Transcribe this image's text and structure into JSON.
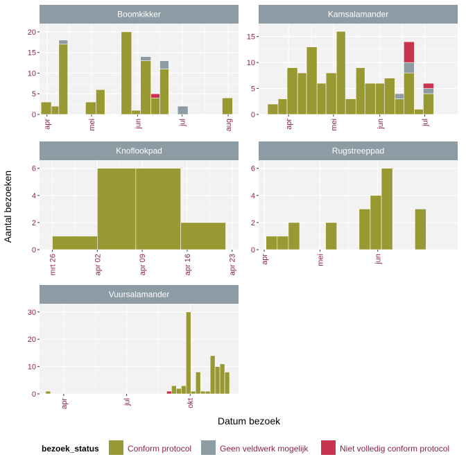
{
  "axis_titles": {
    "x": "Datum bezoek",
    "y": "Aantal bezoeken"
  },
  "legend": {
    "title": "bezoek_status",
    "items": [
      {
        "key": "conform",
        "label": "Conform protocol",
        "color": "#999933"
      },
      {
        "key": "geen",
        "label": "Geen veldwerk mogelijk",
        "color": "#8d9ba5"
      },
      {
        "key": "niet",
        "label": "Niet volledig conform protocol",
        "color": "#c8334f"
      }
    ]
  },
  "chart_data": [
    {
      "type": "bar",
      "facet": "Boomkikker",
      "stack_order": [
        "conform",
        "geen",
        "niet"
      ],
      "ylim": [
        0,
        22
      ],
      "yticks": [
        0,
        5,
        10,
        15,
        20
      ],
      "x_domain": [
        "2023-03-27",
        "2023-08-08"
      ],
      "xticks": [
        {
          "date": "2023-04-01",
          "label": "apr"
        },
        {
          "date": "2023-05-01",
          "label": "mei"
        },
        {
          "date": "2023-06-01",
          "label": "jun"
        },
        {
          "date": "2023-07-01",
          "label": "jul"
        },
        {
          "date": "2023-08-01",
          "label": "aug"
        }
      ],
      "bins": [
        {
          "start": "2023-03-28",
          "end": "2023-04-04",
          "conform": 3,
          "geen": 0,
          "niet": 0
        },
        {
          "start": "2023-04-04",
          "end": "2023-04-09",
          "conform": 2,
          "geen": 0,
          "niet": 0
        },
        {
          "start": "2023-04-09",
          "end": "2023-04-15",
          "conform": 17,
          "geen": 1,
          "niet": 0
        },
        {
          "start": "2023-04-27",
          "end": "2023-05-04",
          "conform": 3,
          "geen": 0,
          "niet": 0
        },
        {
          "start": "2023-05-04",
          "end": "2023-05-10",
          "conform": 6,
          "geen": 0,
          "niet": 0
        },
        {
          "start": "2023-05-21",
          "end": "2023-05-28",
          "conform": 20,
          "geen": 0,
          "niet": 0
        },
        {
          "start": "2023-05-28",
          "end": "2023-06-03",
          "conform": 1,
          "geen": 0,
          "niet": 0
        },
        {
          "start": "2023-06-03",
          "end": "2023-06-10",
          "conform": 13,
          "geen": 1,
          "niet": 0
        },
        {
          "start": "2023-06-10",
          "end": "2023-06-16",
          "conform": 4,
          "geen": 0,
          "niet": 1
        },
        {
          "start": "2023-06-16",
          "end": "2023-06-22",
          "conform": 11,
          "geen": 2,
          "niet": 0
        },
        {
          "start": "2023-06-28",
          "end": "2023-07-05",
          "conform": 0,
          "geen": 2,
          "niet": 0
        },
        {
          "start": "2023-07-28",
          "end": "2023-08-04",
          "conform": 4,
          "geen": 0,
          "niet": 0
        }
      ]
    },
    {
      "type": "bar",
      "facet": "Kamsalamander",
      "stack_order": [
        "conform",
        "geen",
        "niet"
      ],
      "ylim": [
        0,
        17.5
      ],
      "yticks": [
        0,
        5,
        10,
        15
      ],
      "x_domain": [
        "2023-03-12",
        "2023-07-23"
      ],
      "xticks": [
        {
          "date": "2023-04-01",
          "label": "apr"
        },
        {
          "date": "2023-05-01",
          "label": "mei"
        },
        {
          "date": "2023-06-01",
          "label": "jun"
        },
        {
          "date": "2023-07-01",
          "label": "jul"
        }
      ],
      "bins": [
        {
          "start": "2023-03-18",
          "end": "2023-03-25",
          "conform": 2,
          "geen": 0,
          "niet": 0
        },
        {
          "start": "2023-03-25",
          "end": "2023-03-31",
          "conform": 3,
          "geen": 0,
          "niet": 0
        },
        {
          "start": "2023-03-31",
          "end": "2023-04-07",
          "conform": 9,
          "geen": 0,
          "niet": 0
        },
        {
          "start": "2023-04-07",
          "end": "2023-04-13",
          "conform": 8,
          "geen": 0,
          "niet": 0
        },
        {
          "start": "2023-04-13",
          "end": "2023-04-20",
          "conform": 13,
          "geen": 0,
          "niet": 0
        },
        {
          "start": "2023-04-20",
          "end": "2023-04-26",
          "conform": 6,
          "geen": 0,
          "niet": 0
        },
        {
          "start": "2023-04-26",
          "end": "2023-05-03",
          "conform": 8,
          "geen": 0,
          "niet": 0
        },
        {
          "start": "2023-05-03",
          "end": "2023-05-09",
          "conform": 16,
          "geen": 0,
          "niet": 0
        },
        {
          "start": "2023-05-09",
          "end": "2023-05-16",
          "conform": 3,
          "geen": 0,
          "niet": 0
        },
        {
          "start": "2023-05-16",
          "end": "2023-05-22",
          "conform": 9,
          "geen": 0,
          "niet": 0
        },
        {
          "start": "2023-05-22",
          "end": "2023-05-29",
          "conform": 6,
          "geen": 0,
          "niet": 0
        },
        {
          "start": "2023-05-29",
          "end": "2023-06-04",
          "conform": 6,
          "geen": 0,
          "niet": 0
        },
        {
          "start": "2023-06-04",
          "end": "2023-06-11",
          "conform": 7,
          "geen": 0,
          "niet": 0
        },
        {
          "start": "2023-06-11",
          "end": "2023-06-17",
          "conform": 3,
          "geen": 1,
          "niet": 0
        },
        {
          "start": "2023-06-17",
          "end": "2023-06-24",
          "conform": 8,
          "geen": 2,
          "niet": 4
        },
        {
          "start": "2023-06-24",
          "end": "2023-06-30",
          "conform": 1,
          "geen": 0,
          "niet": 0
        },
        {
          "start": "2023-06-30",
          "end": "2023-07-07",
          "conform": 4,
          "geen": 1,
          "niet": 1
        }
      ]
    },
    {
      "type": "bar",
      "facet": "Knoflookpad",
      "stack_order": [
        "conform",
        "geen",
        "niet"
      ],
      "ylim": [
        0,
        6.6
      ],
      "yticks": [
        0,
        2,
        4,
        6
      ],
      "x_domain": [
        "2023-03-24",
        "2023-04-24"
      ],
      "xticks": [
        {
          "date": "2023-03-26",
          "label": "mrt 26"
        },
        {
          "date": "2023-04-02",
          "label": "apr 02"
        },
        {
          "date": "2023-04-09",
          "label": "apr 09"
        },
        {
          "date": "2023-04-16",
          "label": "apr 16"
        },
        {
          "date": "2023-04-23",
          "label": "apr 23"
        }
      ],
      "bins": [
        {
          "start": "2023-03-26",
          "end": "2023-04-02",
          "conform": 1,
          "geen": 0,
          "niet": 0
        },
        {
          "start": "2023-04-02",
          "end": "2023-04-08",
          "conform": 6,
          "geen": 0,
          "niet": 0
        },
        {
          "start": "2023-04-08",
          "end": "2023-04-15",
          "conform": 6,
          "geen": 0,
          "niet": 0
        },
        {
          "start": "2023-04-15",
          "end": "2023-04-22",
          "conform": 2,
          "geen": 0,
          "niet": 0
        }
      ]
    },
    {
      "type": "bar",
      "facet": "Rugstreeppad",
      "stack_order": [
        "conform",
        "geen",
        "niet"
      ],
      "ylim": [
        0,
        6.6
      ],
      "yticks": [
        0,
        2,
        4,
        6
      ],
      "x_domain": [
        "2023-03-29",
        "2023-07-14"
      ],
      "xticks": [
        {
          "date": "2023-04-01",
          "label": "apr"
        },
        {
          "date": "2023-05-01",
          "label": "mei"
        },
        {
          "date": "2023-06-01",
          "label": "jun"
        }
      ],
      "bins": [
        {
          "start": "2023-04-02",
          "end": "2023-04-08",
          "conform": 1,
          "geen": 0,
          "niet": 0
        },
        {
          "start": "2023-04-08",
          "end": "2023-04-14",
          "conform": 1,
          "geen": 0,
          "niet": 0
        },
        {
          "start": "2023-04-14",
          "end": "2023-04-20",
          "conform": 2,
          "geen": 0,
          "niet": 0
        },
        {
          "start": "2023-05-04",
          "end": "2023-05-10",
          "conform": 2,
          "geen": 0,
          "niet": 0
        },
        {
          "start": "2023-05-22",
          "end": "2023-05-28",
          "conform": 3,
          "geen": 0,
          "niet": 0
        },
        {
          "start": "2023-05-28",
          "end": "2023-06-03",
          "conform": 4,
          "geen": 0,
          "niet": 0
        },
        {
          "start": "2023-06-03",
          "end": "2023-06-09",
          "conform": 6,
          "geen": 0,
          "niet": 0
        },
        {
          "start": "2023-06-21",
          "end": "2023-06-27",
          "conform": 3,
          "geen": 0,
          "niet": 0
        }
      ]
    },
    {
      "type": "bar",
      "facet": "Vuursalamander",
      "stack_order": [
        "conform",
        "geen",
        "niet"
      ],
      "ylim": [
        0,
        33
      ],
      "yticks": [
        0,
        10,
        20,
        30
      ],
      "x_domain": [
        "2023-02-25",
        "2023-12-10"
      ],
      "xticks": [
        {
          "date": "2023-04-01",
          "label": "apr"
        },
        {
          "date": "2023-07-01",
          "label": "jul"
        },
        {
          "date": "2023-10-01",
          "label": "okt"
        }
      ],
      "bins": [
        {
          "start": "2023-03-06",
          "end": "2023-03-13",
          "conform": 1,
          "geen": 0,
          "niet": 0
        },
        {
          "start": "2023-08-28",
          "end": "2023-09-04",
          "conform": 0,
          "geen": 0,
          "niet": 1
        },
        {
          "start": "2023-09-04",
          "end": "2023-09-11",
          "conform": 3,
          "geen": 0,
          "niet": 0
        },
        {
          "start": "2023-09-11",
          "end": "2023-09-18",
          "conform": 2,
          "geen": 0,
          "niet": 0
        },
        {
          "start": "2023-09-18",
          "end": "2023-09-25",
          "conform": 3,
          "geen": 0,
          "niet": 0
        },
        {
          "start": "2023-09-25",
          "end": "2023-10-02",
          "conform": 30,
          "geen": 0,
          "niet": 0
        },
        {
          "start": "2023-10-02",
          "end": "2023-10-09",
          "conform": 1,
          "geen": 0,
          "niet": 0
        },
        {
          "start": "2023-10-09",
          "end": "2023-10-16",
          "conform": 8,
          "geen": 0,
          "niet": 0
        },
        {
          "start": "2023-10-16",
          "end": "2023-10-23",
          "conform": 1,
          "geen": 0,
          "niet": 0
        },
        {
          "start": "2023-10-23",
          "end": "2023-10-30",
          "conform": 1,
          "geen": 0,
          "niet": 0
        },
        {
          "start": "2023-10-30",
          "end": "2023-11-06",
          "conform": 14,
          "geen": 0,
          "niet": 0
        },
        {
          "start": "2023-11-06",
          "end": "2023-11-13",
          "conform": 10,
          "geen": 0,
          "niet": 0
        },
        {
          "start": "2023-11-13",
          "end": "2023-11-20",
          "conform": 11,
          "geen": 0,
          "niet": 0
        },
        {
          "start": "2023-11-20",
          "end": "2023-11-27",
          "conform": 8,
          "geen": 0,
          "niet": 0
        }
      ]
    }
  ]
}
